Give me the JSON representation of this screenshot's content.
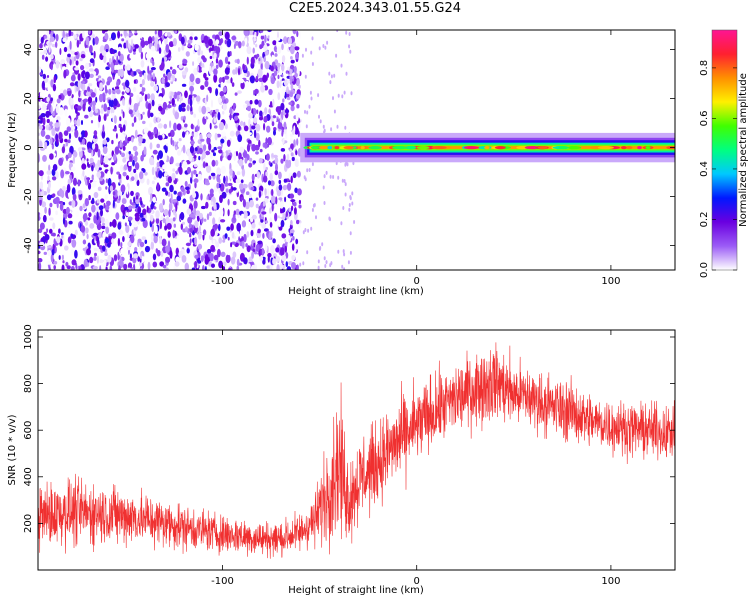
{
  "page_title": "C2E5.2024.343.01.55.G24",
  "chart_data": [
    {
      "type": "heatmap",
      "xlabel": "Height of straight line (km)",
      "ylabel": "Frequency (Hz)",
      "xlim": [
        -195,
        133
      ],
      "ylim": [
        -50,
        48
      ],
      "xticks": [
        -100,
        0,
        100
      ],
      "yticks": [
        -40,
        -20,
        0,
        20,
        40
      ],
      "colorbar": {
        "label": "Normalized spectral amplitude",
        "range": [
          0,
          0.95
        ],
        "ticks": [
          0.0,
          0.2,
          0.4,
          0.6,
          0.8
        ],
        "colormap": [
          "#ffffff",
          "#9b5cf6",
          "#6a00e0",
          "#0018ff",
          "#00c8ff",
          "#00ff80",
          "#40ff00",
          "#fff000",
          "#ff9000",
          "#ff2030",
          "#ff1493"
        ]
      },
      "regions": [
        {
          "x_range": [
            -195,
            -60
          ],
          "description": "broadband noise",
          "amplitude_range": [
            0.0,
            0.25
          ]
        },
        {
          "x_range": [
            -60,
            133
          ],
          "line_frequency_hz": 0,
          "amplitude_range": [
            0.4,
            0.95
          ]
        }
      ]
    },
    {
      "type": "line",
      "xlabel": "Height of straight line (km)",
      "ylabel": "SNR (10 * v/v)",
      "xlim": [
        -195,
        133
      ],
      "ylim": [
        0,
        1030
      ],
      "xticks": [
        -100,
        0,
        100
      ],
      "yticks": [
        200,
        400,
        600,
        800,
        1000
      ],
      "series": [
        {
          "color": "#f03030",
          "envelope_x": [
            -195,
            -180,
            -160,
            -140,
            -120,
            -100,
            -80,
            -70,
            -60,
            -52,
            -46,
            -40,
            -35,
            -30,
            -20,
            -10,
            0,
            10,
            20,
            30,
            40,
            50,
            60,
            70,
            80,
            90,
            100,
            110,
            120,
            133
          ],
          "envelope_low": [
            40,
            50,
            60,
            60,
            50,
            40,
            30,
            30,
            40,
            60,
            30,
            40,
            50,
            120,
            220,
            300,
            380,
            470,
            520,
            560,
            580,
            560,
            550,
            520,
            500,
            480,
            460,
            450,
            440,
            430
          ],
          "envelope_high": [
            420,
            450,
            420,
            380,
            320,
            270,
            240,
            240,
            280,
            380,
            650,
            900,
            550,
            650,
            700,
            800,
            860,
            900,
            950,
            1000,
            1040,
            960,
            920,
            880,
            860,
            800,
            780,
            760,
            760,
            740
          ]
        }
      ]
    }
  ]
}
